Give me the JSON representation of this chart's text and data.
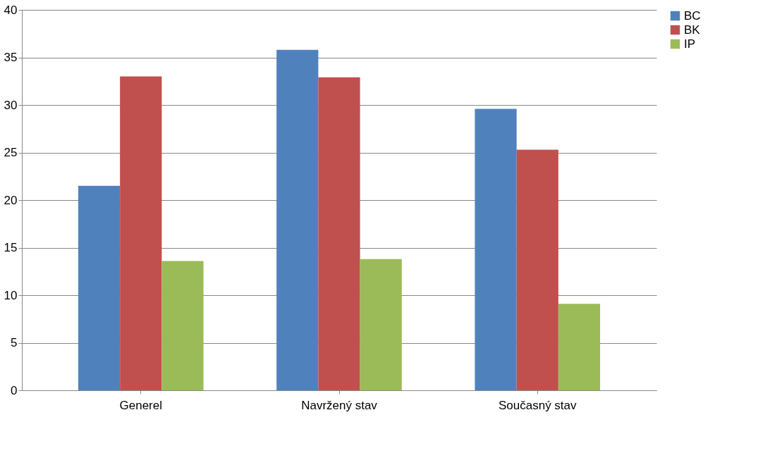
{
  "chart_data": {
    "type": "bar",
    "categories": [
      "Generel",
      "Navržený stav",
      "Současný stav"
    ],
    "series": [
      {
        "name": "BC",
        "color": "#4f81bd",
        "values": [
          21.5,
          35.8,
          29.6
        ]
      },
      {
        "name": "BK",
        "color": "#c0504d",
        "values": [
          33.0,
          32.9,
          25.3
        ]
      },
      {
        "name": "IP",
        "color": "#9bbb59",
        "values": [
          13.6,
          13.8,
          9.1
        ]
      }
    ],
    "ylim": [
      0,
      40
    ],
    "yticks": [
      0,
      5,
      10,
      15,
      20,
      25,
      30,
      35,
      40
    ],
    "grid": "y",
    "legend": "right"
  }
}
